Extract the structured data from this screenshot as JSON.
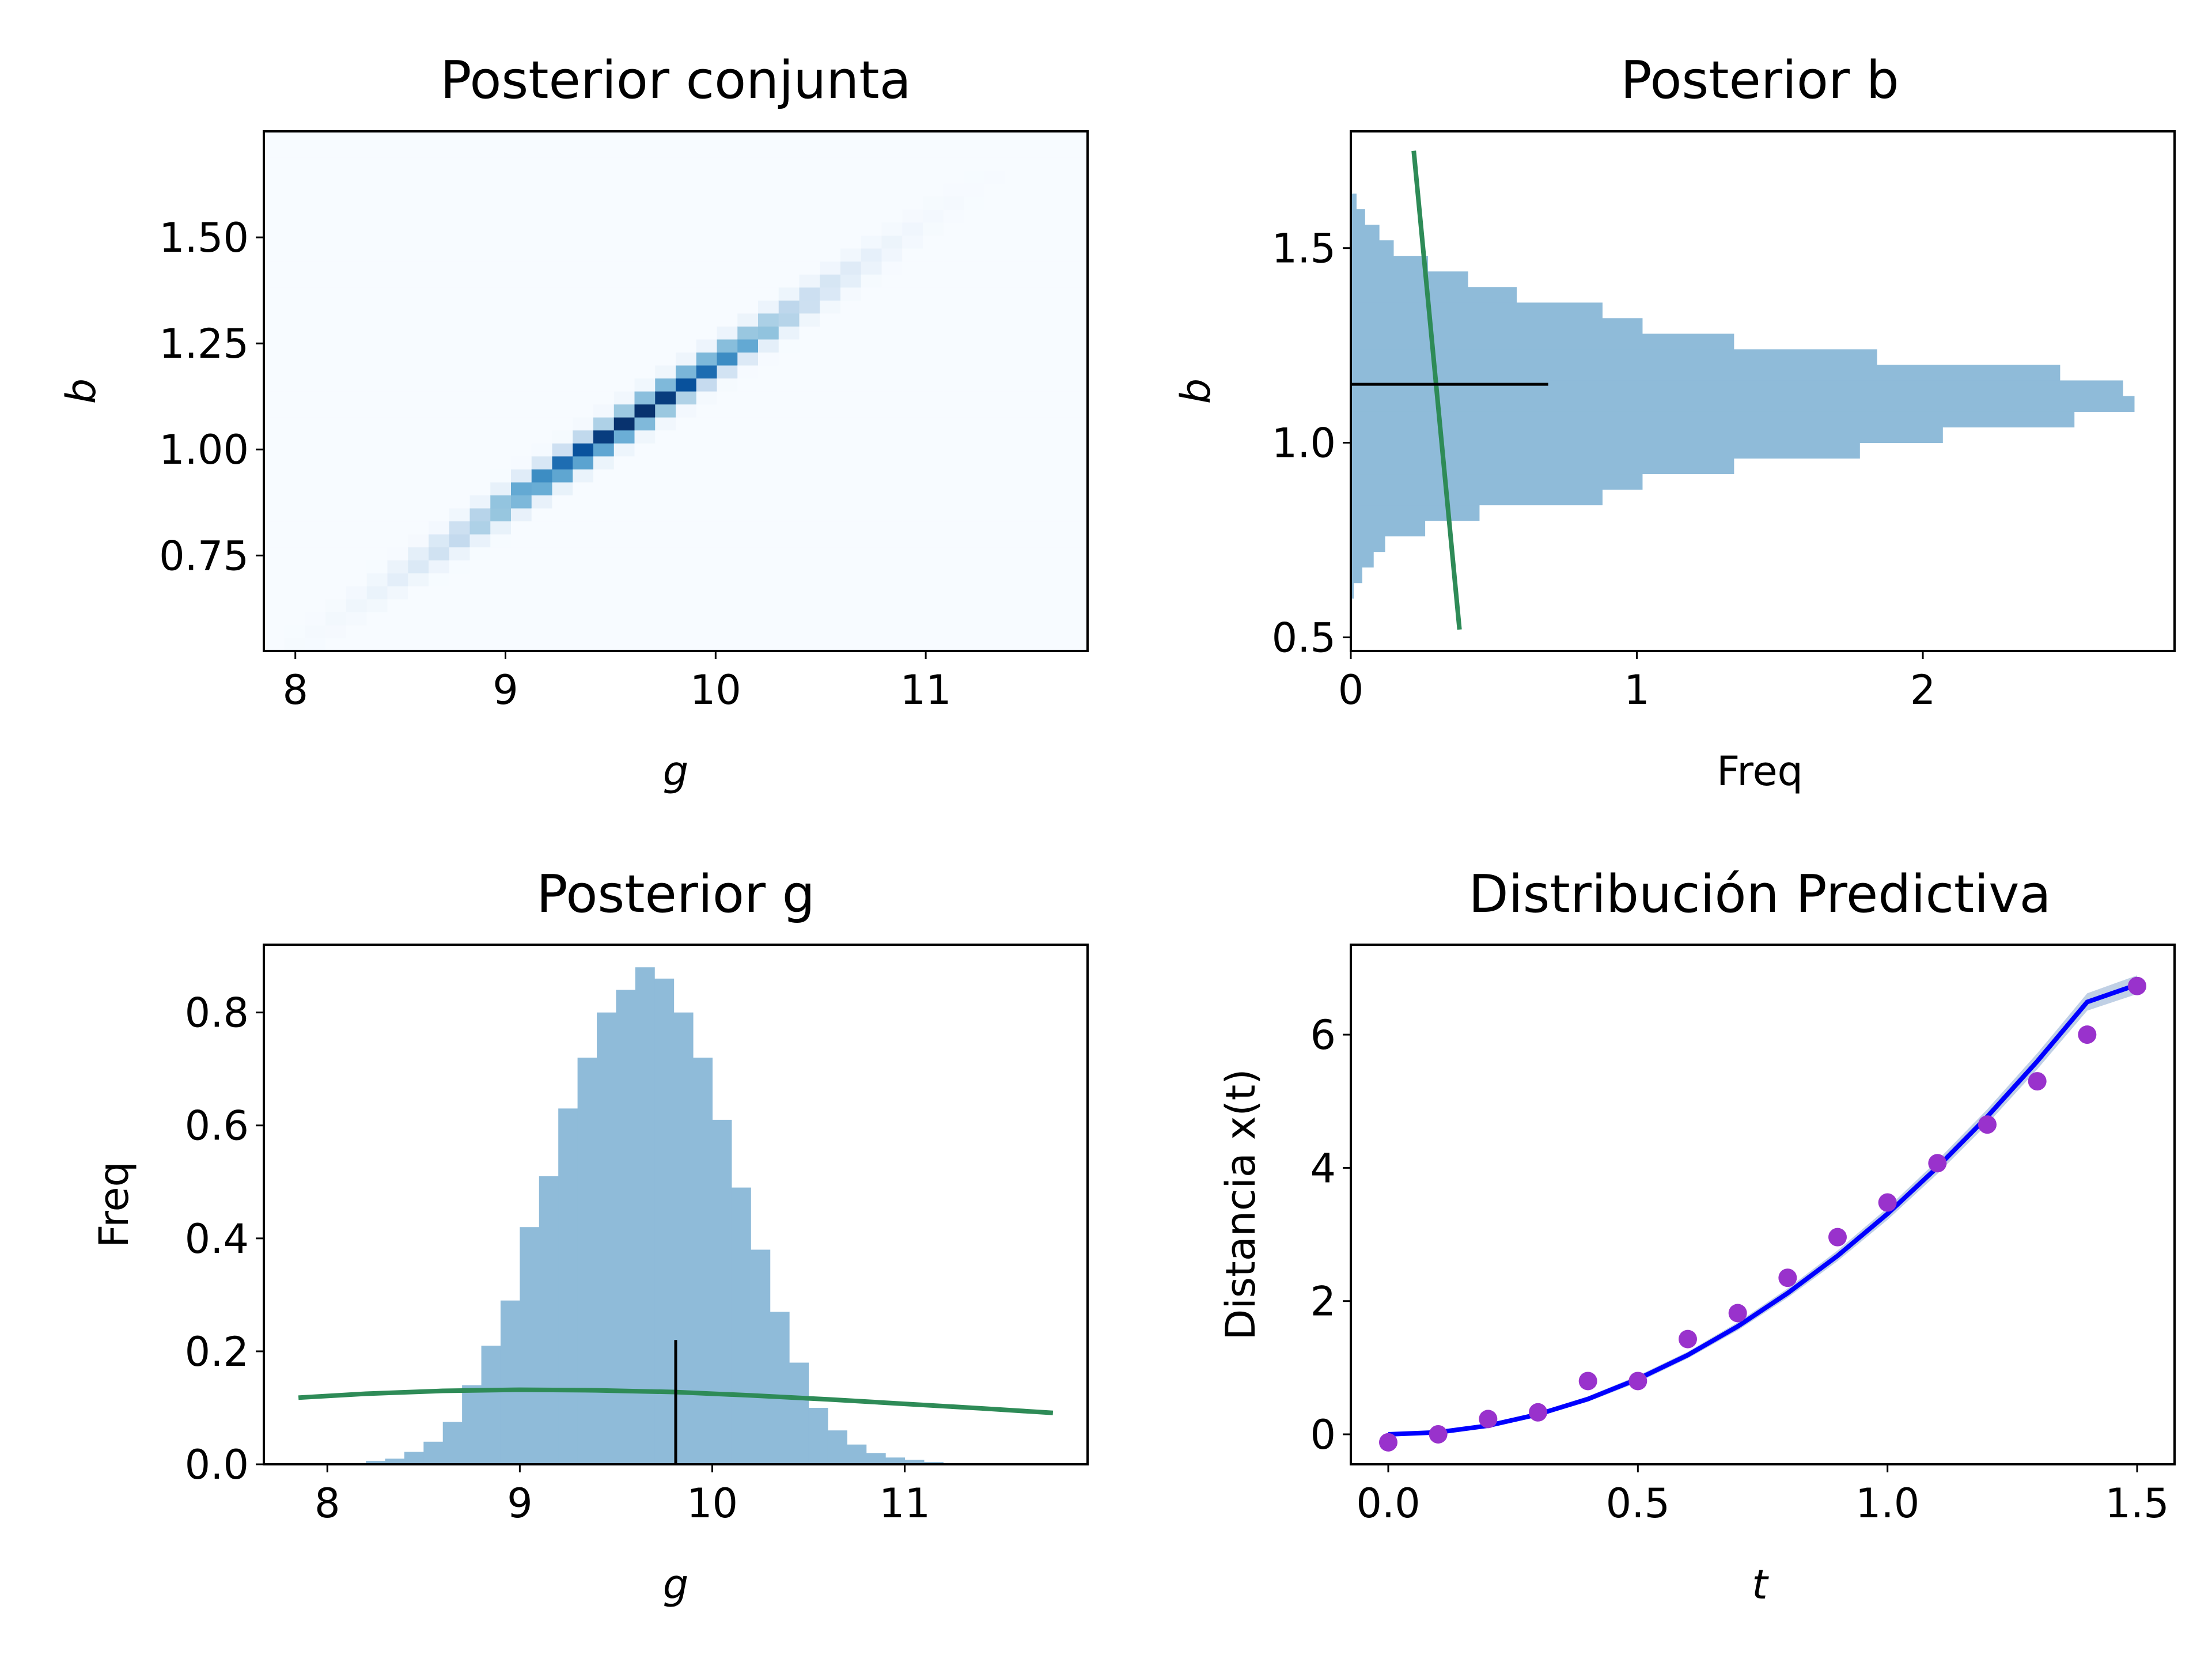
{
  "chart_data": [
    {
      "type": "heatmap",
      "title": "Posterior conjunta",
      "xlabel": "g",
      "ylabel": "b",
      "xlim": [
        7.85,
        11.77
      ],
      "ylim": [
        0.525,
        1.75
      ],
      "xticks": [
        "8",
        "9",
        "10",
        "11"
      ],
      "yticks": [
        "0.75",
        "1.00",
        "1.25",
        "1.50"
      ],
      "colormap": "Blues",
      "grid": false,
      "joint_density": {
        "relation": "b increases linearly with g",
        "ridge": {
          "g": [
            8.0,
            11.0
          ],
          "b": [
            0.55,
            1.55
          ]
        },
        "peak": {
          "g": 9.6,
          "b": 1.07
        }
      }
    },
    {
      "type": "bar",
      "orientation": "horizontal",
      "title": "Posterior b",
      "xlabel": "Freq",
      "ylabel": "b",
      "xlim": [
        0,
        2.88
      ],
      "ylim": [
        0.465,
        1.8
      ],
      "xticks": [
        "0",
        "1",
        "2"
      ],
      "yticks": [
        "0.5",
        "1.0",
        "1.5"
      ],
      "color": "#8fbbd9",
      "grid": false,
      "bin_edges": [
        0.6,
        0.64,
        0.68,
        0.72,
        0.76,
        0.8,
        0.84,
        0.88,
        0.92,
        0.96,
        1.0,
        1.04,
        1.08,
        1.12,
        1.16,
        1.2,
        1.24,
        1.28,
        1.32,
        1.36,
        1.4,
        1.44,
        1.48,
        1.52,
        1.56,
        1.6,
        1.64
      ],
      "values": [
        0.01,
        0.04,
        0.08,
        0.12,
        0.26,
        0.45,
        0.88,
        1.02,
        1.34,
        1.78,
        2.07,
        2.53,
        2.74,
        2.7,
        2.48,
        1.84,
        1.34,
        1.02,
        0.88,
        0.58,
        0.41,
        0.27,
        0.15,
        0.1,
        0.05,
        0.02
      ],
      "reference_line": {
        "b": 1.15,
        "freq": [
          0,
          0.69
        ],
        "color": "#000000"
      },
      "prior_curve": {
        "color": "#2e8b57",
        "b": [
          1.75,
          0.52
        ],
        "freq": [
          0.22,
          0.38
        ]
      }
    },
    {
      "type": "bar",
      "title": "Posterior g",
      "xlabel": "g",
      "ylabel": "Freq",
      "xlim": [
        7.67,
        11.95
      ],
      "ylim": [
        0,
        0.92
      ],
      "xticks": [
        "8",
        "9",
        "10",
        "11"
      ],
      "yticks": [
        "0.0",
        "0.2",
        "0.4",
        "0.6",
        "0.8"
      ],
      "color": "#8fbbd9",
      "grid": false,
      "bin_edges": [
        8.1,
        8.2,
        8.3,
        8.4,
        8.5,
        8.6,
        8.7,
        8.8,
        8.9,
        9.0,
        9.1,
        9.2,
        9.3,
        9.4,
        9.5,
        9.6,
        9.7,
        9.8,
        9.9,
        10.0,
        10.1,
        10.2,
        10.3,
        10.4,
        10.5,
        10.6,
        10.7,
        10.8,
        10.9,
        11.0,
        11.1,
        11.2,
        11.3
      ],
      "values": [
        0.002,
        0.006,
        0.01,
        0.022,
        0.04,
        0.075,
        0.14,
        0.21,
        0.29,
        0.42,
        0.51,
        0.63,
        0.72,
        0.8,
        0.84,
        0.88,
        0.86,
        0.8,
        0.72,
        0.61,
        0.49,
        0.38,
        0.27,
        0.18,
        0.1,
        0.06,
        0.035,
        0.02,
        0.012,
        0.008,
        0.004,
        0.002
      ],
      "reference_line": {
        "g": 9.81,
        "freq": [
          0,
          0.22
        ],
        "color": "#000000"
      },
      "prior_curve": {
        "color": "#2e8b57",
        "g": [
          7.85,
          8.2,
          8.6,
          9.0,
          9.4,
          9.8,
          10.2,
          10.6,
          11.0,
          11.4,
          11.77
        ],
        "freq": [
          0.118,
          0.125,
          0.13,
          0.132,
          0.131,
          0.128,
          0.122,
          0.115,
          0.107,
          0.099,
          0.091
        ]
      }
    },
    {
      "type": "scatter",
      "title": "Distribución Predictiva",
      "xlabel": "t",
      "ylabel": "Distancia x(t)",
      "xlim": [
        -0.075,
        1.575
      ],
      "ylim": [
        -0.45,
        7.35
      ],
      "xticks": [
        "0.0",
        "0.5",
        "1.0",
        "1.5"
      ],
      "yticks": [
        "0",
        "2",
        "4",
        "6"
      ],
      "grid": false,
      "points": {
        "color": "#9932cc",
        "x": [
          0.0,
          0.1,
          0.2,
          0.3,
          0.4,
          0.5,
          0.6,
          0.7,
          0.8,
          0.9,
          1.0,
          1.1,
          1.2,
          1.3,
          1.4,
          1.5
        ],
        "y": [
          -0.12,
          0.0,
          0.23,
          0.33,
          0.8,
          0.8,
          1.43,
          1.82,
          2.35,
          2.96,
          3.48,
          4.07,
          4.65,
          5.3,
          6.0,
          6.73
        ]
      },
      "curve": {
        "color": "#0000ff",
        "band_color": "#b0c4de",
        "x": [
          0.0,
          0.1,
          0.2,
          0.3,
          0.4,
          0.5,
          0.6,
          0.7,
          0.8,
          0.9,
          1.0,
          1.1,
          1.2,
          1.3,
          1.4,
          1.5
        ],
        "y": [
          0.0,
          0.03,
          0.13,
          0.3,
          0.53,
          0.83,
          1.19,
          1.62,
          2.12,
          2.68,
          3.31,
          4.01,
          4.77,
          5.6,
          6.49,
          6.75
        ],
        "band": [
          0.0,
          0.01,
          0.02,
          0.03,
          0.04,
          0.05,
          0.05,
          0.06,
          0.07,
          0.08,
          0.09,
          0.1,
          0.11,
          0.12,
          0.13,
          0.14
        ]
      }
    }
  ]
}
